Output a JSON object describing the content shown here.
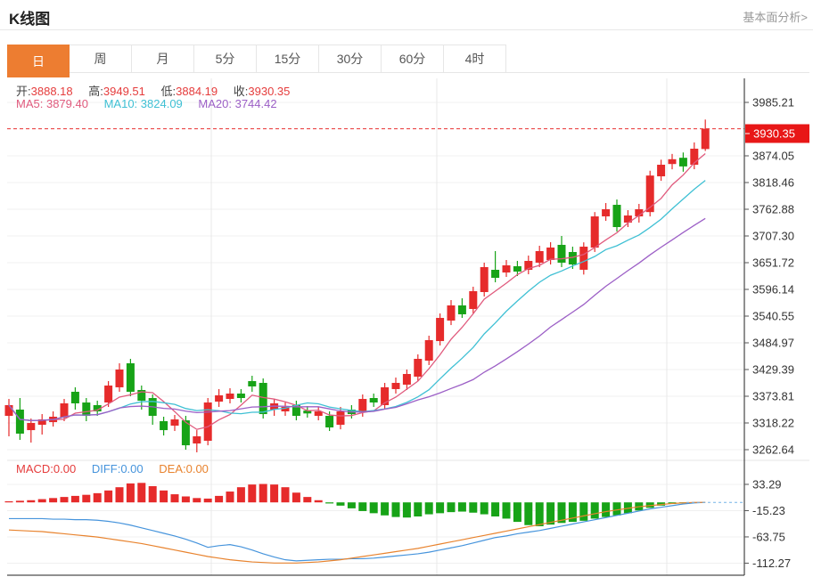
{
  "page": {
    "title": "K线图",
    "analysis_link": "基本面分析>"
  },
  "tabs": {
    "items": [
      "日",
      "周",
      "月",
      "5分",
      "15分",
      "30分",
      "60分",
      "4时"
    ],
    "active_index": 0
  },
  "ohlc": {
    "open_label": "开:",
    "open": "3888.18",
    "high_label": "高:",
    "high": "3949.51",
    "low_label": "低:",
    "low": "3884.19",
    "close_label": "收:",
    "close": "3930.35"
  },
  "ma": {
    "ma5_label": "MA5: ",
    "ma5": "3879.40",
    "ma10_label": "MA10: ",
    "ma10": "3824.09",
    "ma20_label": "MA20: ",
    "ma20": "3744.42"
  },
  "macd_header": {
    "macd_label": "MACD:",
    "macd": "0.00",
    "diff_label": "DIFF:",
    "diff": "0.00",
    "dea_label": "DEA:",
    "dea": "0.00"
  },
  "colors": {
    "up_red": "#e62b2b",
    "down_green": "#17a317",
    "ma5_pink": "#e05a7d",
    "ma10_cyan": "#3fc0d4",
    "ma20_purple": "#9c5fc6",
    "diff_blue": "#4694dc",
    "dea_orange": "#e8832e",
    "price_tag_red": "#e81717",
    "dashed_line_red": "#e83030",
    "zero_dash_blue": "#74b4e8",
    "value_red": "#e53c3c",
    "axis_text": "#333333",
    "tab_active_bg": "#ed7d31"
  },
  "chart_data": {
    "type": "candlestick",
    "title": "K线图",
    "timeframe": "日",
    "y_range": [
      3262.64,
      3985.21
    ],
    "y_axis_labels": [
      {
        "label": "3985.21",
        "value": 3985.21
      },
      {
        "label": "3874.05",
        "value": 3874.05
      },
      {
        "label": "3818.46",
        "value": 3818.46
      },
      {
        "label": "3762.88",
        "value": 3762.88
      },
      {
        "label": "3707.30",
        "value": 3707.3
      },
      {
        "label": "3651.72",
        "value": 3651.72
      },
      {
        "label": "3596.14",
        "value": 3596.14
      },
      {
        "label": "3540.55",
        "value": 3540.55
      },
      {
        "label": "3484.97",
        "value": 3484.97
      },
      {
        "label": "3429.39",
        "value": 3429.39
      },
      {
        "label": "3373.81",
        "value": 3373.81
      },
      {
        "label": "3318.22",
        "value": 3318.22
      },
      {
        "label": "3262.64",
        "value": 3262.64
      }
    ],
    "current_price": {
      "label": "3930.35",
      "value": 3930.35
    },
    "candle_format": [
      "open",
      "close",
      "low",
      "high"
    ],
    "candles": [
      [
        3333.0,
        3355.3,
        3290.4,
        3368.2
      ],
      [
        3346.0,
        3296.0,
        3283.0,
        3370.1
      ],
      [
        3303.3,
        3318.2,
        3277.4,
        3327.4
      ],
      [
        3314.4,
        3325.6,
        3294.1,
        3336.7
      ],
      [
        3320.0,
        3331.2,
        3310.7,
        3342.3
      ],
      [
        3329.3,
        3359.0,
        3321.9,
        3368.2
      ],
      [
        3383.1,
        3359.0,
        3346.0,
        3392.4
      ],
      [
        3360.8,
        3333.0,
        3321.9,
        3370.1
      ],
      [
        3355.3,
        3342.3,
        3333.0,
        3364.5
      ],
      [
        3360.8,
        3396.1,
        3351.6,
        3405.3
      ],
      [
        3392.4,
        3429.4,
        3383.1,
        3442.4
      ],
      [
        3442.4,
        3383.1,
        3373.8,
        3451.6
      ],
      [
        3386.8,
        3364.5,
        3346.0,
        3396.1
      ],
      [
        3370.1,
        3333.0,
        3314.4,
        3377.5
      ],
      [
        3321.9,
        3303.3,
        3292.2,
        3331.2
      ],
      [
        3312.6,
        3325.6,
        3301.5,
        3334.9
      ],
      [
        3323.7,
        3271.8,
        3262.6,
        3333.0
      ],
      [
        3275.5,
        3290.4,
        3257.1,
        3303.3
      ],
      [
        3281.1,
        3360.8,
        3271.8,
        3370.1
      ],
      [
        3362.6,
        3375.7,
        3351.6,
        3388.7
      ],
      [
        3368.2,
        3379.4,
        3359.0,
        3390.5
      ],
      [
        3379.4,
        3370.1,
        3360.8,
        3388.7
      ],
      [
        3405.3,
        3394.2,
        3383.1,
        3416.4
      ],
      [
        3401.6,
        3336.7,
        3327.4,
        3410.9
      ],
      [
        3346.0,
        3359.0,
        3333.0,
        3368.2
      ],
      [
        3342.3,
        3351.6,
        3333.0,
        3360.8
      ],
      [
        3355.3,
        3333.0,
        3323.7,
        3364.5
      ],
      [
        3344.0,
        3338.0,
        3329.3,
        3353.4
      ],
      [
        3333.0,
        3342.3,
        3323.7,
        3351.6
      ],
      [
        3333.0,
        3308.9,
        3301.5,
        3342.3
      ],
      [
        3314.4,
        3342.3,
        3305.0,
        3351.6
      ],
      [
        3346.0,
        3336.7,
        3327.4,
        3355.3
      ],
      [
        3340.4,
        3368.2,
        3331.2,
        3377.5
      ],
      [
        3370.1,
        3360.8,
        3351.6,
        3379.4
      ],
      [
        3355.3,
        3392.4,
        3346.0,
        3401.6
      ],
      [
        3388.7,
        3401.6,
        3379.4,
        3412.7
      ],
      [
        3397.9,
        3420.1,
        3386.8,
        3429.4
      ],
      [
        3414.6,
        3451.6,
        3405.3,
        3460.9
      ],
      [
        3447.9,
        3490.5,
        3438.7,
        3499.8
      ],
      [
        3488.6,
        3536.8,
        3479.4,
        3546.1
      ],
      [
        3531.2,
        3562.8,
        3521.9,
        3573.9
      ],
      [
        3562.8,
        3544.3,
        3536.8,
        3577.6
      ],
      [
        3555.4,
        3592.4,
        3546.1,
        3601.7
      ],
      [
        3590.6,
        3642.5,
        3581.3,
        3651.7
      ],
      [
        3636.9,
        3620.2,
        3610.9,
        3675.8
      ],
      [
        3631.3,
        3646.2,
        3622.1,
        3657.3
      ],
      [
        3644.3,
        3633.2,
        3623.9,
        3655.4
      ],
      [
        3636.9,
        3655.4,
        3627.6,
        3666.5
      ],
      [
        3651.7,
        3675.8,
        3642.5,
        3686.9
      ],
      [
        3657.3,
        3683.2,
        3648.0,
        3694.3
      ],
      [
        3688.8,
        3651.7,
        3642.5,
        3707.3
      ],
      [
        3673.9,
        3648.0,
        3638.7,
        3685.0
      ],
      [
        3637.0,
        3685.0,
        3627.0,
        3694.0
      ],
      [
        3683.0,
        3748.0,
        3674.0,
        3757.0
      ],
      [
        3748.1,
        3762.9,
        3738.8,
        3775.8
      ],
      [
        3772.1,
        3725.8,
        3716.5,
        3783.2
      ],
      [
        3735.1,
        3749.9,
        3725.8,
        3761.0
      ],
      [
        3748.1,
        3762.9,
        3735.1,
        3774.0
      ],
      [
        3757.0,
        3833.0,
        3748.0,
        3843.0
      ],
      [
        3831.4,
        3855.5,
        3822.0,
        3866.0
      ],
      [
        3857.0,
        3867.0,
        3846.0,
        3878.0
      ],
      [
        3870.0,
        3852.0,
        3841.0,
        3881.0
      ],
      [
        3855.5,
        3888.9,
        3846.2,
        3901.9
      ],
      [
        3888.18,
        3930.35,
        3884.19,
        3949.51
      ]
    ],
    "ma_periods": [
      5,
      10,
      20
    ],
    "macd": {
      "axis_labels": [
        {
          "label": "33.29",
          "value": 33.29
        },
        {
          "label": "-15.23",
          "value": -15.23
        },
        {
          "label": "-63.75",
          "value": -63.75
        },
        {
          "label": "-112.27",
          "value": -112.27
        }
      ],
      "histogram": [
        2,
        3,
        4,
        6,
        8,
        10,
        12,
        14,
        17,
        22,
        28,
        35,
        36,
        30,
        22,
        15,
        11,
        8,
        7,
        12,
        20,
        28,
        33,
        34,
        33,
        28,
        18,
        10,
        4,
        -2,
        -6,
        -11,
        -16,
        -20,
        -24,
        -27,
        -28,
        -26,
        -22,
        -20,
        -18,
        -17,
        -19,
        -22,
        -26,
        -30,
        -36,
        -42,
        -44,
        -41,
        -38,
        -36,
        -34,
        -30,
        -27,
        -24,
        -20,
        -15,
        -10,
        -6,
        -3,
        -1,
        0,
        0
      ],
      "diff": [
        -30,
        -30,
        -30,
        -30,
        -31,
        -31,
        -32,
        -32,
        -33,
        -35,
        -38,
        -42,
        -47,
        -52,
        -57,
        -62,
        -68,
        -75,
        -83,
        -80,
        -78,
        -82,
        -88,
        -95,
        -101,
        -106,
        -108,
        -107,
        -106,
        -105,
        -105,
        -104,
        -104,
        -103,
        -101,
        -99,
        -97,
        -95,
        -92,
        -88,
        -84,
        -80,
        -75,
        -70,
        -65,
        -62,
        -58,
        -55,
        -52,
        -48,
        -44,
        -40,
        -36,
        -32,
        -28,
        -24,
        -20,
        -16,
        -12,
        -9,
        -6,
        -3,
        -1,
        0
      ],
      "dea": [
        -51,
        -52,
        -53,
        -54,
        -56,
        -58,
        -60,
        -62,
        -64,
        -67,
        -70,
        -73,
        -76,
        -80,
        -84,
        -88,
        -92,
        -96,
        -100,
        -103,
        -106,
        -108,
        -110,
        -111,
        -112,
        -112,
        -112,
        -111,
        -110,
        -108,
        -106,
        -103,
        -100,
        -97,
        -94,
        -91,
        -88,
        -85,
        -81,
        -77,
        -73,
        -69,
        -65,
        -61,
        -57,
        -53,
        -49,
        -45,
        -41,
        -37,
        -33,
        -29,
        -25,
        -21,
        -17,
        -14,
        -11,
        -8,
        -6,
        -4,
        -2,
        -1,
        0,
        0
      ]
    }
  }
}
